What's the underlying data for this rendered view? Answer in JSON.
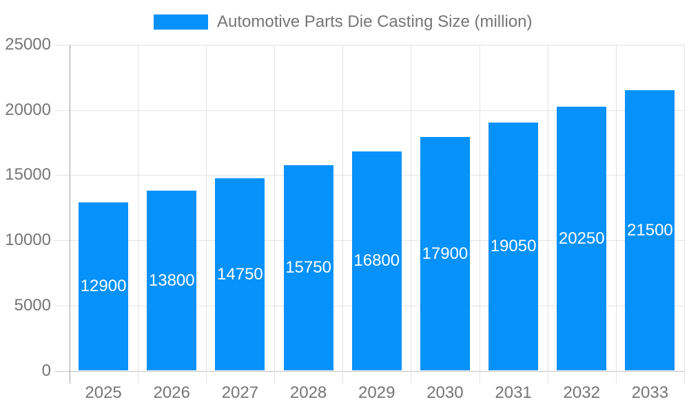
{
  "legend": {
    "label": "Automotive Parts Die Casting Size (million)",
    "swatch_color": "#0691FB"
  },
  "chart_data": {
    "type": "bar",
    "title": "Automotive Parts Die Casting Size (million)",
    "series_name": "Automotive Parts Die Casting Size (million)",
    "categories": [
      "2025",
      "2026",
      "2027",
      "2028",
      "2029",
      "2030",
      "2031",
      "2032",
      "2033"
    ],
    "values": [
      12900,
      13800,
      14750,
      15750,
      16800,
      17900,
      19050,
      20250,
      21500
    ],
    "value_labels": [
      "12900",
      "13800",
      "14750",
      "15750",
      "16800",
      "17900",
      "19050",
      "20250",
      "21500"
    ],
    "xlabel": "",
    "ylabel": "",
    "ylim": [
      0,
      25000
    ],
    "yticks": [
      0,
      5000,
      10000,
      15000,
      20000,
      25000
    ],
    "ytick_labels": [
      "0",
      "5000",
      "10000",
      "15000",
      "20000",
      "25000"
    ],
    "grid": true,
    "legend_position": "top",
    "bar_color": "#0691FB",
    "value_label_color": "#ffffff",
    "axis_text_color": "#757575",
    "gridline_color": "#e3e3e3"
  }
}
